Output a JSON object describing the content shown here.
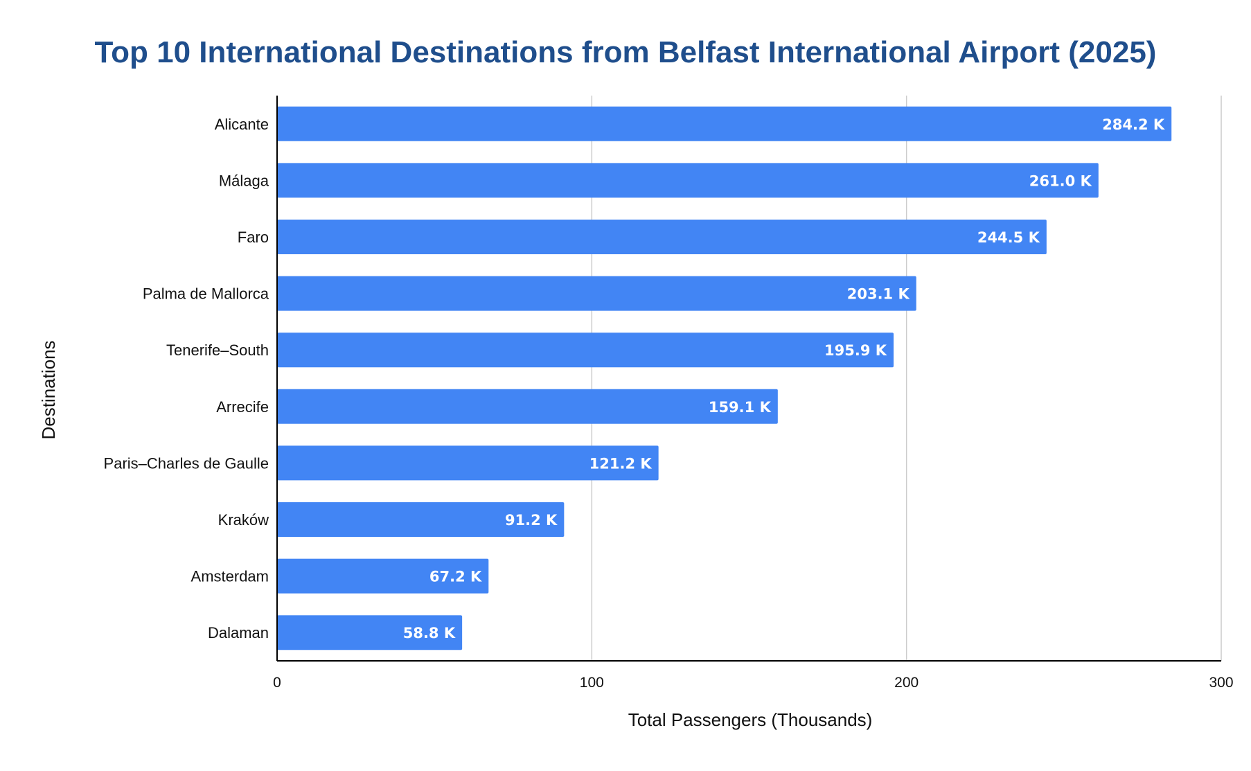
{
  "chart_data": {
    "type": "bar",
    "orientation": "horizontal",
    "title": "Top 10 International Destinations from Belfast International Airport (2025)",
    "xlabel": "Total Passengers (Thousands)",
    "ylabel": "Destinations",
    "xlim": [
      0,
      300
    ],
    "xticks": [
      0,
      100,
      200,
      300
    ],
    "xtick_labels": [
      "0",
      "100",
      "200",
      "300"
    ],
    "grid": true,
    "legend": "none",
    "categories": [
      "Alicante",
      "Málaga",
      "Faro",
      "Palma de Mallorca",
      "Tenerife–South",
      "Arrecife",
      "Paris–Charles de Gaulle",
      "Kraków",
      "Amsterdam",
      "Dalaman"
    ],
    "values": [
      284.2,
      261.0,
      244.5,
      203.1,
      195.9,
      159.1,
      121.2,
      91.2,
      67.2,
      58.8
    ],
    "data_labels": [
      "284.2 K",
      "261.0 K",
      "244.5 K",
      "203.1 K",
      "195.9 K",
      "159.1 K",
      "121.2 K",
      "91.2 K",
      "67.2 K",
      "58.8 K"
    ],
    "colors": {
      "bar": "#4285f4",
      "title": "#1f4e8c",
      "gridline": "#cccccc",
      "axis": "#000000",
      "data_label": "#ffffff"
    }
  }
}
